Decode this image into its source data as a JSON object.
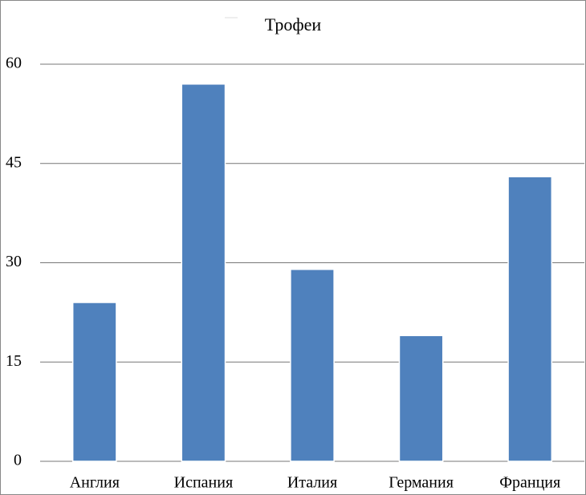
{
  "chart_data": {
    "type": "bar",
    "title": "Трофеи",
    "categories": [
      "Англия",
      "Испания",
      "Италия",
      "Германия",
      "Франция"
    ],
    "values": [
      24,
      57,
      29,
      19,
      43
    ],
    "color": "#4f81bd",
    "ylim": [
      0,
      60
    ],
    "yticks": [
      0,
      15,
      30,
      45,
      60
    ],
    "grid": true
  }
}
